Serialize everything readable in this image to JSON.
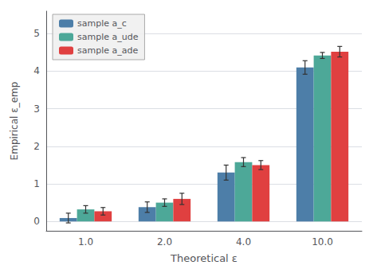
{
  "chart_data": {
    "type": "bar",
    "categories": [
      "1.0",
      "2.0",
      "4.0",
      "10.0"
    ],
    "series": [
      {
        "name": "sample a_c",
        "color": "#4d7ea8",
        "values": [
          0.09,
          0.38,
          1.3,
          4.1
        ],
        "errors": [
          0.13,
          0.14,
          0.2,
          0.18
        ]
      },
      {
        "name": "sample a_ude",
        "color": "#4da898",
        "values": [
          0.32,
          0.5,
          1.58,
          4.42
        ],
        "errors": [
          0.1,
          0.1,
          0.12,
          0.08
        ]
      },
      {
        "name": "sample a_ade",
        "color": "#e04040",
        "values": [
          0.27,
          0.6,
          1.5,
          4.52
        ],
        "errors": [
          0.1,
          0.15,
          0.12,
          0.14
        ]
      }
    ],
    "xlabel": "Theoretical ε",
    "ylabel": "Empirical ε_emp",
    "ylim": [
      -0.25,
      5.6
    ],
    "yticks": [
      0,
      1,
      2,
      3,
      4,
      5
    ],
    "grid": true,
    "legend": "upper left"
  }
}
